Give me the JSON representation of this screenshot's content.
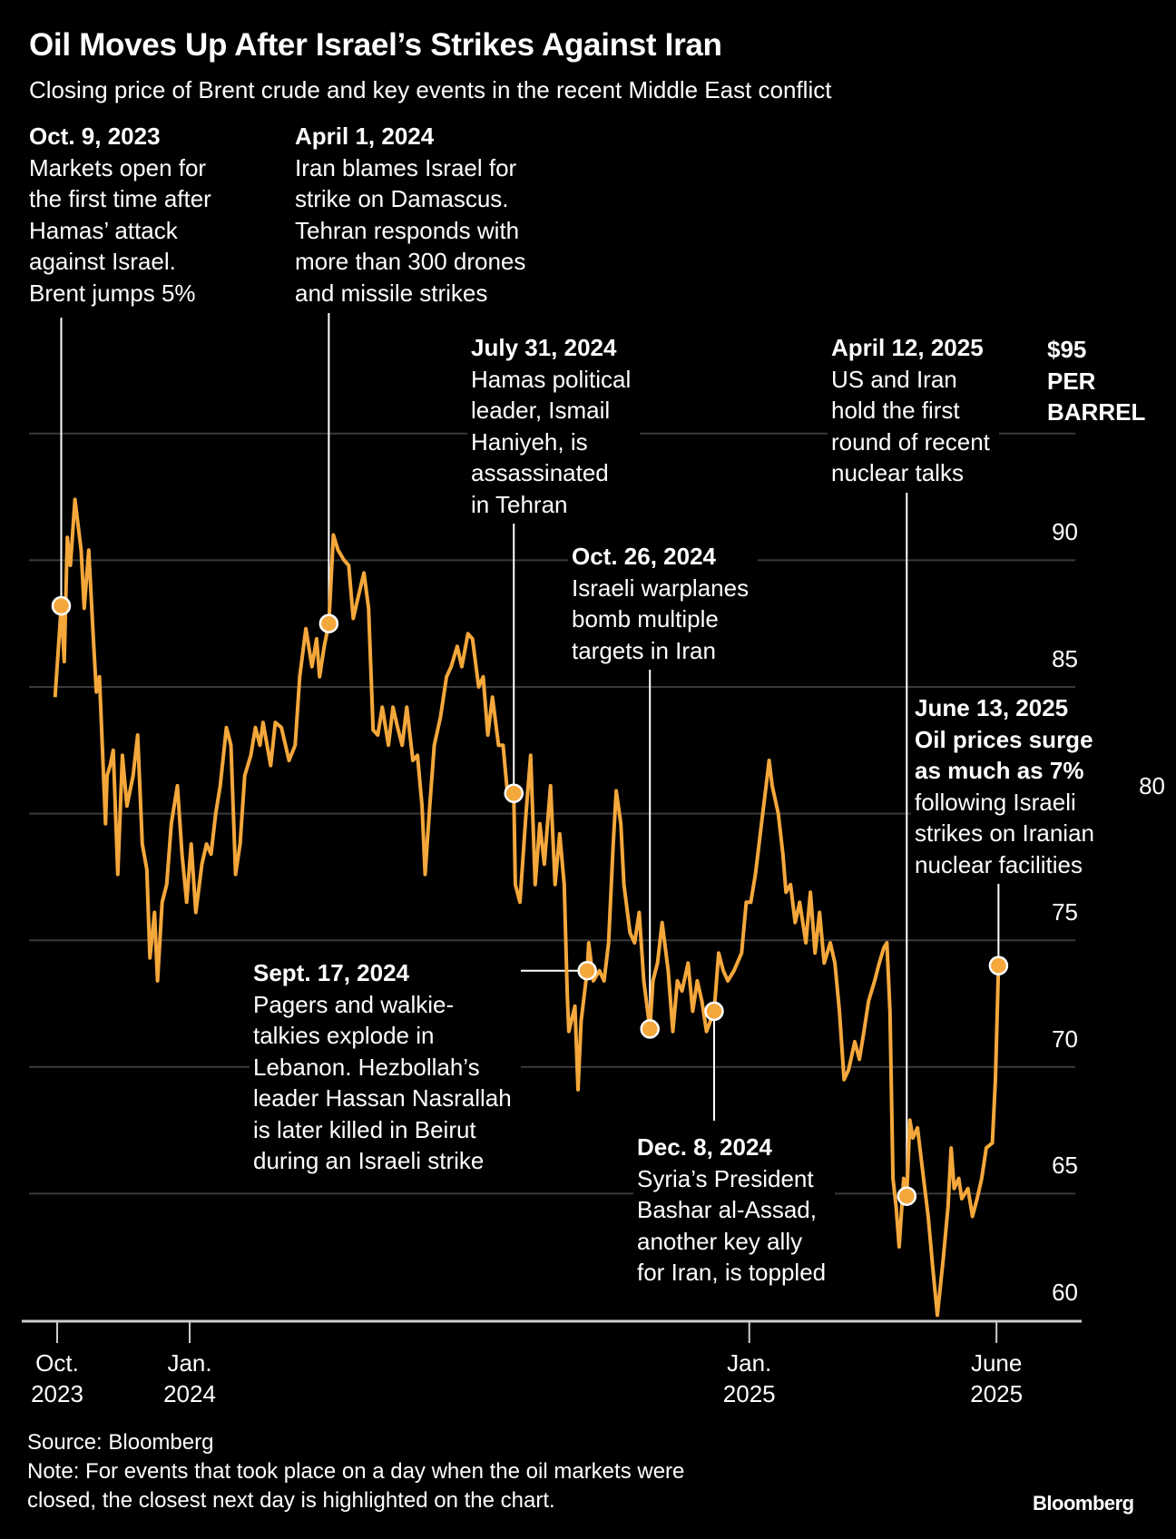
{
  "chart_data": {
    "type": "line",
    "title": "Oil Moves Up After Israel’s Strikes Against Iran",
    "subtitle": "Closing price of Brent crude and key events in the recent Middle East conflict",
    "x_unit": "days since Oct. 1, 2023",
    "y_unit": "$ per barrel",
    "unit_label": [
      "$95",
      "PER",
      "BARREL"
    ],
    "ylim": [
      60,
      95
    ],
    "y_ticks": [
      60,
      65,
      70,
      75,
      80,
      85,
      90
    ],
    "y_top_tick": 95,
    "x_ticks": [
      {
        "day": 0,
        "line1": "Oct.",
        "line2": "2023"
      },
      {
        "day": 92,
        "line1": "Jan.",
        "line2": "2024"
      },
      {
        "day": 458,
        "line1": "Jan.",
        "line2": "2025"
      },
      {
        "day": 609,
        "line1": "June",
        "line2": "2025"
      }
    ],
    "colors": {
      "line": "#F4A73B",
      "grid": "#3a3a3a",
      "axis": "#cccccc"
    },
    "series": [
      {
        "name": "Brent crude closing price",
        "points": [
          [
            4,
            84.6
          ],
          [
            8,
            88.2
          ],
          [
            10,
            86.0
          ],
          [
            12,
            90.9
          ],
          [
            14,
            89.8
          ],
          [
            17,
            92.4
          ],
          [
            21,
            90.4
          ],
          [
            23,
            88.1
          ],
          [
            26,
            90.4
          ],
          [
            29,
            86.9
          ],
          [
            31,
            84.8
          ],
          [
            33,
            85.4
          ],
          [
            37,
            79.6
          ],
          [
            38,
            81.5
          ],
          [
            40,
            81.9
          ],
          [
            42,
            82.5
          ],
          [
            45,
            77.6
          ],
          [
            48,
            82.3
          ],
          [
            51,
            80.3
          ],
          [
            55,
            81.5
          ],
          [
            58,
            83.1
          ],
          [
            61,
            78.8
          ],
          [
            64,
            77.8
          ],
          [
            66,
            74.3
          ],
          [
            69,
            76.1
          ],
          [
            71,
            73.4
          ],
          [
            74,
            76.5
          ],
          [
            77,
            77.2
          ],
          [
            80,
            79.6
          ],
          [
            84,
            81.1
          ],
          [
            87,
            78.4
          ],
          [
            90,
            76.5
          ],
          [
            93,
            78.8
          ],
          [
            96,
            76.1
          ],
          [
            100,
            78.0
          ],
          [
            103,
            78.8
          ],
          [
            106,
            78.4
          ],
          [
            109,
            80.0
          ],
          [
            112,
            81.1
          ],
          [
            116,
            83.4
          ],
          [
            119,
            82.7
          ],
          [
            122,
            77.6
          ],
          [
            125,
            78.8
          ],
          [
            128,
            81.5
          ],
          [
            132,
            82.3
          ],
          [
            135,
            83.4
          ],
          [
            138,
            82.7
          ],
          [
            140,
            83.6
          ],
          [
            145,
            81.9
          ],
          [
            148,
            83.6
          ],
          [
            152,
            83.4
          ],
          [
            157,
            82.1
          ],
          [
            161,
            82.7
          ],
          [
            164,
            85.4
          ],
          [
            168,
            87.3
          ],
          [
            172,
            85.8
          ],
          [
            175,
            86.9
          ],
          [
            177,
            85.4
          ],
          [
            180,
            86.6
          ],
          [
            183,
            87.5
          ],
          [
            186,
            91.0
          ],
          [
            189,
            90.4
          ],
          [
            193,
            90.0
          ],
          [
            196,
            89.8
          ],
          [
            199,
            87.7
          ],
          [
            202,
            88.5
          ],
          [
            206,
            89.5
          ],
          [
            209,
            88.1
          ],
          [
            212,
            83.3
          ],
          [
            215,
            83.1
          ],
          [
            218,
            84.2
          ],
          [
            222,
            82.7
          ],
          [
            225,
            84.2
          ],
          [
            228,
            83.4
          ],
          [
            231,
            82.7
          ],
          [
            234,
            84.2
          ],
          [
            238,
            82.1
          ],
          [
            241,
            82.3
          ],
          [
            244,
            80.3
          ],
          [
            246,
            77.6
          ],
          [
            249,
            80.3
          ],
          [
            252,
            82.7
          ],
          [
            256,
            83.8
          ],
          [
            260,
            85.4
          ],
          [
            263,
            85.8
          ],
          [
            267,
            86.6
          ],
          [
            270,
            85.8
          ],
          [
            274,
            87.1
          ],
          [
            277,
            86.9
          ],
          [
            281,
            85.0
          ],
          [
            284,
            85.4
          ],
          [
            287,
            83.1
          ],
          [
            290,
            84.6
          ],
          [
            294,
            82.7
          ],
          [
            297,
            82.7
          ],
          [
            300,
            80.7
          ],
          [
            304,
            80.8
          ],
          [
            305,
            77.2
          ],
          [
            308,
            76.5
          ],
          [
            312,
            80.0
          ],
          [
            315,
            82.3
          ],
          [
            318,
            77.2
          ],
          [
            321,
            79.6
          ],
          [
            324,
            78.0
          ],
          [
            328,
            81.1
          ],
          [
            331,
            77.2
          ],
          [
            334,
            79.2
          ],
          [
            337,
            77.2
          ],
          [
            339,
            72.8
          ],
          [
            340,
            71.4
          ],
          [
            344,
            72.4
          ],
          [
            346,
            69.1
          ],
          [
            348,
            71.8
          ],
          [
            352,
            73.8
          ],
          [
            353,
            74.9
          ],
          [
            356,
            73.4
          ],
          [
            360,
            73.8
          ],
          [
            363,
            73.4
          ],
          [
            366,
            74.9
          ],
          [
            369,
            78.8
          ],
          [
            371,
            80.9
          ],
          [
            374,
            79.6
          ],
          [
            376,
            77.2
          ],
          [
            380,
            75.3
          ],
          [
            383,
            74.9
          ],
          [
            386,
            76.1
          ],
          [
            389,
            73.4
          ],
          [
            393,
            71.5
          ],
          [
            395,
            73.4
          ],
          [
            398,
            74.1
          ],
          [
            401,
            75.7
          ],
          [
            405,
            73.8
          ],
          [
            408,
            71.4
          ],
          [
            411,
            73.4
          ],
          [
            414,
            73.0
          ],
          [
            418,
            74.1
          ],
          [
            421,
            72.2
          ],
          [
            424,
            73.4
          ],
          [
            427,
            72.6
          ],
          [
            430,
            71.4
          ],
          [
            435,
            72.2
          ],
          [
            438,
            74.5
          ],
          [
            441,
            73.8
          ],
          [
            444,
            73.4
          ],
          [
            448,
            73.8
          ],
          [
            453,
            74.5
          ],
          [
            456,
            76.5
          ],
          [
            459,
            76.5
          ],
          [
            462,
            77.6
          ],
          [
            466,
            79.6
          ],
          [
            469,
            81.1
          ],
          [
            471,
            82.1
          ],
          [
            473,
            81.1
          ],
          [
            477,
            80.0
          ],
          [
            480,
            78.4
          ],
          [
            482,
            76.9
          ],
          [
            485,
            77.2
          ],
          [
            488,
            75.7
          ],
          [
            491,
            76.5
          ],
          [
            495,
            74.9
          ],
          [
            498,
            76.9
          ],
          [
            501,
            74.5
          ],
          [
            504,
            76.1
          ],
          [
            507,
            74.1
          ],
          [
            511,
            74.9
          ],
          [
            514,
            74.1
          ],
          [
            517,
            72.2
          ],
          [
            520,
            69.5
          ],
          [
            523,
            69.9
          ],
          [
            527,
            71.0
          ],
          [
            530,
            70.3
          ],
          [
            533,
            71.4
          ],
          [
            536,
            72.6
          ],
          [
            540,
            73.4
          ],
          [
            543,
            74.1
          ],
          [
            546,
            74.7
          ],
          [
            548,
            74.9
          ],
          [
            550,
            72.2
          ],
          [
            552,
            65.6
          ],
          [
            554,
            64.5
          ],
          [
            556,
            62.9
          ],
          [
            559,
            65.6
          ],
          [
            561,
            64.9
          ],
          [
            563,
            67.9
          ],
          [
            565,
            67.2
          ],
          [
            568,
            67.6
          ],
          [
            572,
            65.6
          ],
          [
            575,
            64.1
          ],
          [
            578,
            62.1
          ],
          [
            581,
            60.2
          ],
          [
            585,
            62.5
          ],
          [
            588,
            64.5
          ],
          [
            590,
            66.8
          ],
          [
            592,
            65.2
          ],
          [
            595,
            65.6
          ],
          [
            597,
            64.8
          ],
          [
            601,
            65.2
          ],
          [
            604,
            64.1
          ],
          [
            607,
            64.8
          ],
          [
            610,
            65.6
          ],
          [
            613,
            66.8
          ],
          [
            617,
            67.0
          ],
          [
            619,
            69.5
          ],
          [
            621,
            74.0
          ]
        ]
      }
    ],
    "events": [
      {
        "day": 8,
        "price": 88.2,
        "date": "Oct. 9, 2023",
        "lines": [
          "Markets open for",
          "the first time after",
          "Hamas’ attack",
          "against Israel.",
          "Brent jumps 5%"
        ]
      },
      {
        "day": 183,
        "price": 87.5,
        "date": "April 1, 2024",
        "lines": [
          "Iran blames Israel for",
          "strike on Damascus.",
          "Tehran responds with",
          "more than 300 drones",
          "and missile strikes"
        ]
      },
      {
        "day": 304,
        "price": 80.8,
        "date": "July 31, 2024",
        "lines": [
          "Hamas political",
          "leader, Ismail",
          "Haniyeh, is",
          "assassinated",
          "in Tehran"
        ]
      },
      {
        "day": 352,
        "price": 73.8,
        "date": "Sept. 17, 2024",
        "lines": [
          "Pagers and walkie-",
          "talkies explode in",
          "Lebanon. Hezbollah’s",
          "leader Hassan Nasrallah",
          "is later killed in Beirut",
          "during an Israeli strike"
        ]
      },
      {
        "day": 393,
        "price": 71.5,
        "date": "Oct. 26, 2024",
        "lines": [
          "Israeli warplanes",
          "bomb multiple",
          "targets in Iran"
        ]
      },
      {
        "day": 435,
        "price": 72.2,
        "date": "Dec. 8, 2024",
        "lines": [
          "Syria’s President",
          "Bashar al-Assad,",
          "another key ally",
          "for Iran, is toppled"
        ]
      },
      {
        "day": 561,
        "price": 64.9,
        "date": "April 12, 2025",
        "lines": [
          "US and Iran",
          "hold the first",
          "round of recent",
          "nuclear talks"
        ]
      },
      {
        "day": 621,
        "price": 74.0,
        "date": "June 13, 2025",
        "bold_lines": [
          "Oil prices surge",
          "as much as 7%"
        ],
        "lines": [
          "following Israeli",
          "strikes on Iranian",
          "nuclear facilities"
        ]
      }
    ]
  },
  "footer": {
    "source": "Source: Bloomberg",
    "note_line1": "Note: For events that took place on a day when the oil markets were",
    "note_line2": "closed, the closest next day is highlighted on the chart.",
    "logo": "Bloomberg"
  }
}
